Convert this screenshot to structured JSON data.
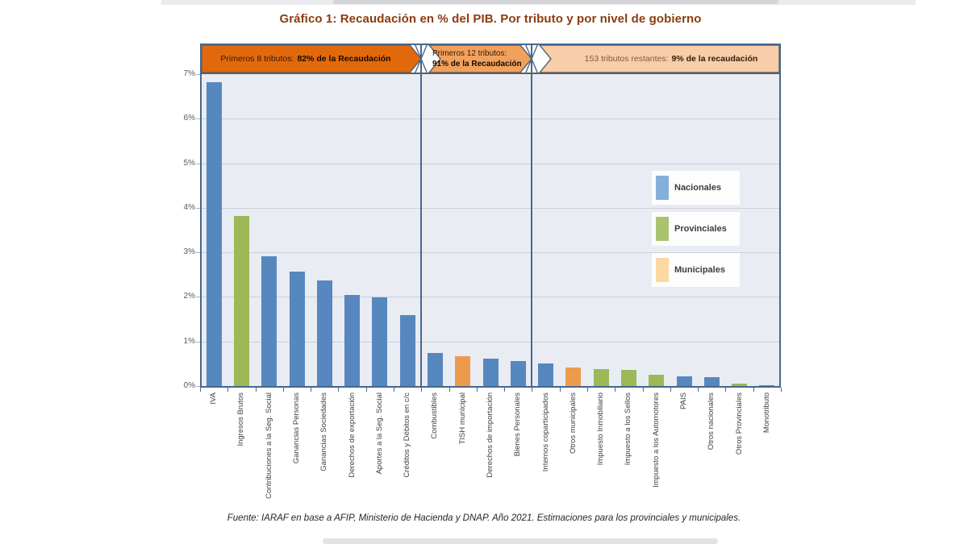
{
  "title": "Gráfico 1: Recaudación en % del PIB. Por tributo y por nivel de gobierno",
  "bands": [
    {
      "prefix": "Primeros 8 tributos:",
      "highlight": "82% de la Recaudación",
      "fill": "#e2690b"
    },
    {
      "prefix": "Primeros 12 tributos:",
      "highlight": "91% de la Recaudación",
      "fill": "#f2a15c"
    },
    {
      "prefix": "153 tributos restantes:",
      "highlight": "9% de la recaudación",
      "fill": "#f8cda9"
    }
  ],
  "legend": {
    "items": [
      {
        "label": "Nacionales",
        "color": "#85aed9"
      },
      {
        "label": "Provinciales",
        "color": "#a9c36e"
      },
      {
        "label": "Municipales",
        "color": "#fcd9a1"
      }
    ]
  },
  "chart_data": {
    "type": "bar",
    "title": "Gráfico 1: Recaudación en % del PIB. Por tributo y por nivel de gobierno",
    "xlabel": "",
    "ylabel": "",
    "ylim": [
      0,
      7
    ],
    "ytick_labels": [
      "0%",
      "1%",
      "2%",
      "3%",
      "4%",
      "5%",
      "6%",
      "7%"
    ],
    "grid": true,
    "legend_position": "center-right",
    "categories": [
      "IVA",
      "Ingresos Brutos",
      "Contribuciones a la Seg. Social",
      "Ganancias Personas",
      "Ganancias Sociedades",
      "Derechos de exportación",
      "Aportes a la Seg. Social",
      "Créditos y Débitos en c/c",
      "Combustibles",
      "TISH municipal",
      "Derechos de importación",
      "Bienes Personales",
      "Internos coparticipados",
      "Otros municipales",
      "Impuesto Inmobiliario",
      "Impuesto a los Sellos",
      "Impuesto a los Automotores",
      "PAIS",
      "Otros nacionales",
      "Otros Provinciales",
      "Monotributo"
    ],
    "values": [
      6.85,
      3.85,
      2.95,
      2.6,
      2.4,
      2.08,
      2.03,
      1.62,
      0.77,
      0.7,
      0.65,
      0.6,
      0.55,
      0.46,
      0.42,
      0.4,
      0.29,
      0.26,
      0.23,
      0.09,
      0.05
    ],
    "levels": [
      "Nacionales",
      "Provinciales",
      "Nacionales",
      "Nacionales",
      "Nacionales",
      "Nacionales",
      "Nacionales",
      "Nacionales",
      "Nacionales",
      "Municipales",
      "Nacionales",
      "Nacionales",
      "Nacionales",
      "Municipales",
      "Provinciales",
      "Provinciales",
      "Provinciales",
      "Nacionales",
      "Nacionales",
      "Provinciales",
      "Nacionales"
    ],
    "level_colors": {
      "Nacionales": "#5787bf",
      "Provinciales": "#9cb857",
      "Municipales": "#ec9b4d"
    },
    "group_separators_after_index": [
      7,
      11
    ]
  },
  "source": "Fuente: IARAF en base a AFIP, Ministerio de Hacienda y DNAP. Año 2021. Estimaciones para los provinciales y municipales."
}
